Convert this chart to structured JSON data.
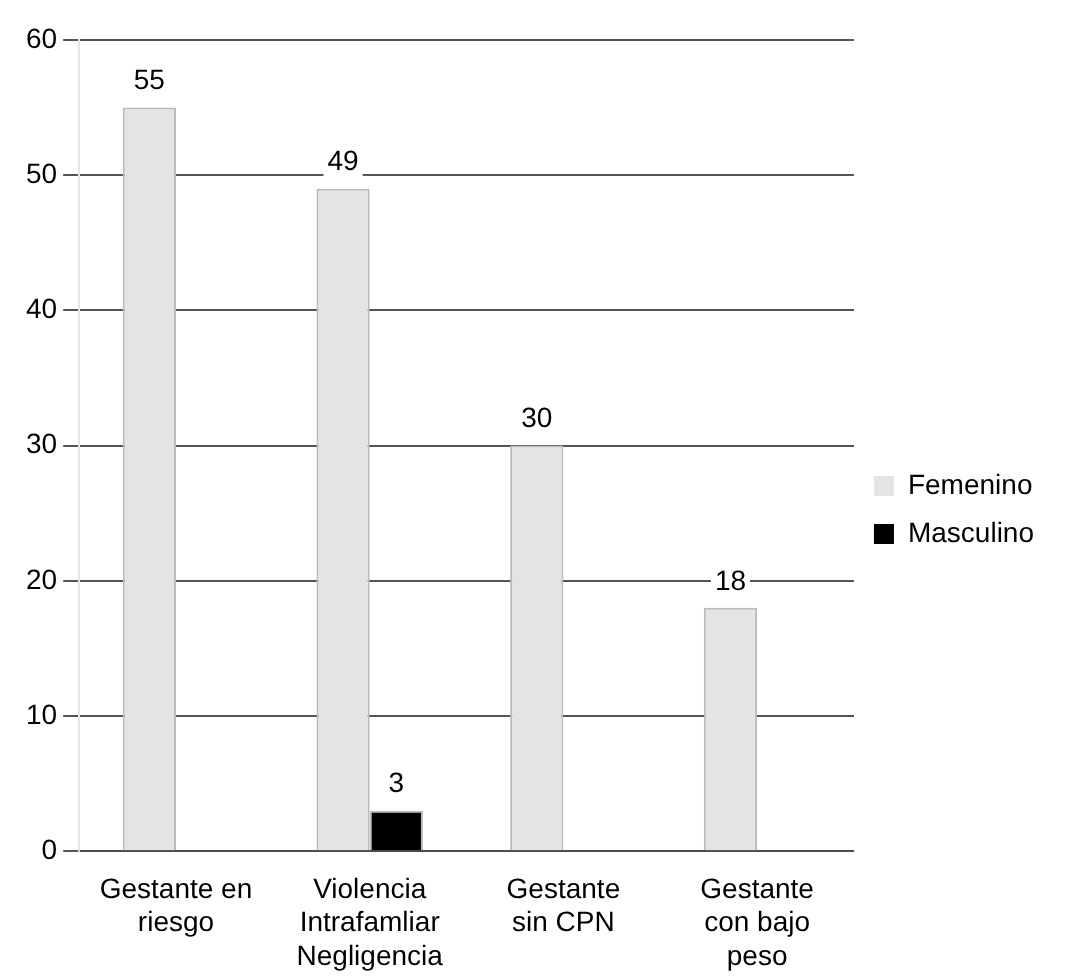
{
  "chart_data": {
    "type": "bar",
    "categories": [
      "Gestante en riesgo",
      "Violencia Intrafamliar Negligencia",
      "Gestante sin CPN",
      "Gestante con bajo peso"
    ],
    "series": [
      {
        "name": "Femenino",
        "color": "#e4e4e4",
        "values": [
          55,
          49,
          30,
          18
        ],
        "value_labels": [
          "55",
          "49",
          "30",
          "18"
        ]
      },
      {
        "name": "Masculino",
        "color": "#000000",
        "values": [
          null,
          3,
          null,
          null
        ],
        "value_labels": [
          null,
          "3",
          null,
          null
        ]
      }
    ],
    "ylim": [
      0,
      60
    ],
    "yticks": [
      0,
      10,
      20,
      30,
      40,
      50,
      60
    ],
    "grid": "y",
    "legend": "right"
  }
}
